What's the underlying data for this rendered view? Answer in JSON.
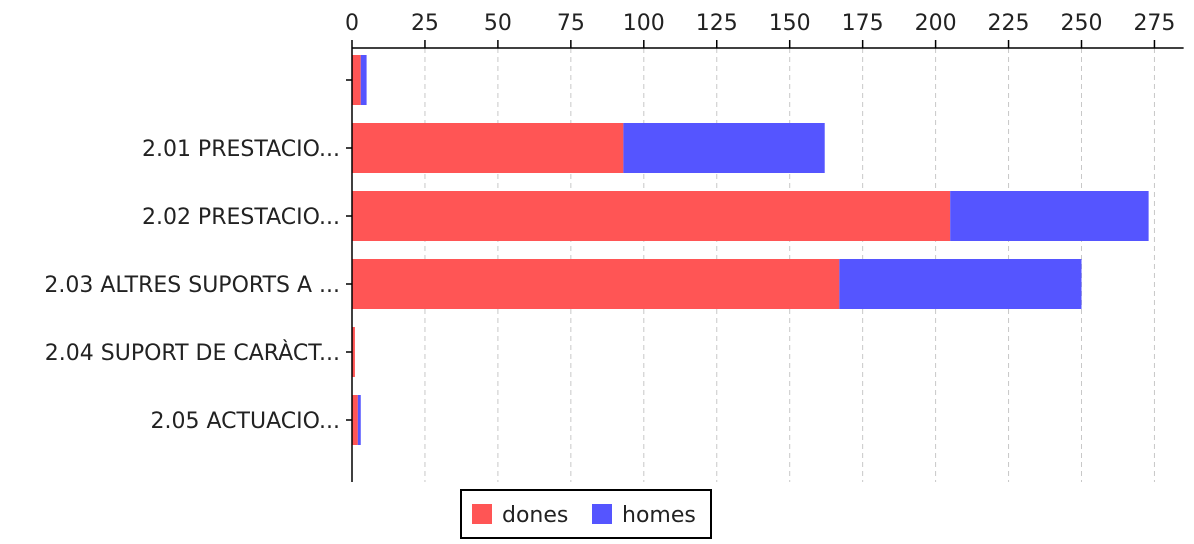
{
  "chart_data": {
    "type": "bar",
    "orientation": "horizontal",
    "stacked": true,
    "categories": [
      "",
      "2.01 PRESTACIO...",
      "2.02 PRESTACIO...",
      "2.03 ALTRES SUPORTS A ...",
      "2.04 SUPORT DE CARÀCT...",
      "2.05 ACTUACIO..."
    ],
    "series": [
      {
        "name": "dones",
        "color": "#ff5555",
        "values": [
          3,
          93,
          205,
          167,
          1,
          2
        ]
      },
      {
        "name": "homes",
        "color": "#5555ff",
        "values": [
          2,
          69,
          68,
          83,
          0,
          1
        ]
      }
    ],
    "xlim": [
      0,
      285
    ],
    "xticks": [
      0,
      25,
      50,
      75,
      100,
      125,
      150,
      175,
      200,
      225,
      250,
      275
    ],
    "x_axis_position": "top",
    "grid": "vertical dashed",
    "legend_position": "bottom"
  }
}
